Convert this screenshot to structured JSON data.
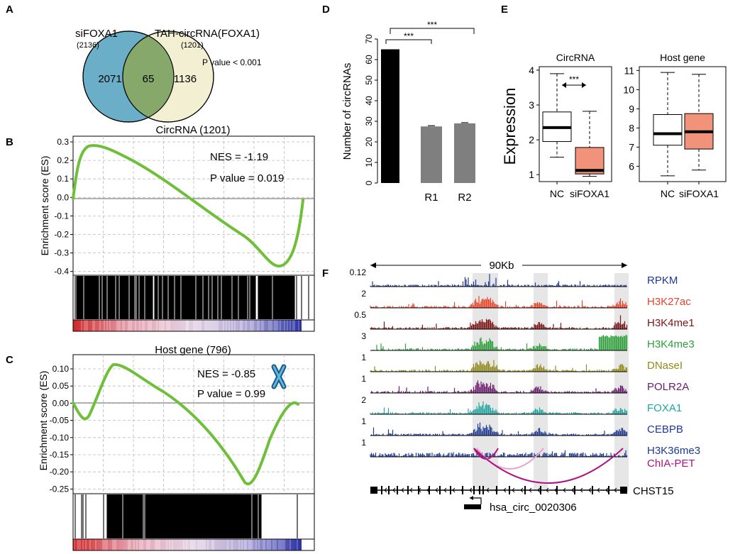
{
  "panels": {
    "a": "A",
    "b": "B",
    "c": "C",
    "d": "D",
    "e": "E",
    "f": "F"
  },
  "venn": {
    "left_label": "siFOXA1",
    "left_count": "(2136)",
    "right_label": "TAH-circRNA(FOXA1)",
    "right_count": "(1201)",
    "left_only": "2071",
    "overlap": "65",
    "right_only": "1136",
    "pvalue": "P value < 0.001",
    "colors": {
      "left": "#6aaec7",
      "right": "#f2efd2",
      "overlap": "#86a96b"
    }
  },
  "gsea_b": {
    "title": "CircRNA (1201)",
    "ylabel": "Enrichment score (ES)",
    "nes": "NES = -1.19",
    "pval": "P value = 0.019",
    "yticks": [
      "0.3",
      "0.2",
      "0.1",
      "0.0",
      "-0.1",
      "-0.2",
      "-0.3",
      "-0.4"
    ]
  },
  "gsea_c": {
    "title": "Host gene (796)",
    "ylabel": "Enrichment score (ES)",
    "nes": "NES = -0.85",
    "pval": "P value = 0.99",
    "yticks": [
      "0.10",
      "0.05",
      "0.00",
      "-0.05",
      "-0.10",
      "-0.15",
      "-0.20",
      "-0.25"
    ]
  },
  "chart_data": [
    {
      "type": "bar",
      "panel": "D",
      "categories": [
        "",
        "R1",
        "R2"
      ],
      "values": [
        65,
        27.5,
        29
      ],
      "ylabel": "Number of circRNAs",
      "ylim": [
        0,
        70
      ],
      "yticks": [
        "0",
        "10",
        "20",
        "30",
        "40",
        "50",
        "60",
        "70"
      ],
      "significance": [
        "***",
        "***"
      ],
      "colors": [
        "#000000",
        "#7f7f7f",
        "#7f7f7f"
      ]
    },
    {
      "type": "boxplot",
      "panel": "E-left",
      "title": "CircRNA",
      "ylabel": "Expression",
      "categories": [
        "NC",
        "siFOXA1"
      ],
      "boxes": [
        {
          "min": 1.5,
          "q1": 1.95,
          "median": 2.35,
          "q3": 2.8,
          "max": 3.9
        },
        {
          "min": 0.95,
          "q1": 1.02,
          "median": 1.12,
          "q3": 1.78,
          "max": 2.82
        }
      ],
      "ylim": [
        0.8,
        4.1
      ],
      "yticks": [
        "1",
        "2",
        "3",
        "4"
      ],
      "significance": "***"
    },
    {
      "type": "boxplot",
      "panel": "E-right",
      "title": "Host gene",
      "categories": [
        "NC",
        "siFOXA1"
      ],
      "boxes": [
        {
          "min": 5.5,
          "q1": 7.1,
          "median": 7.7,
          "q3": 8.7,
          "max": 10.9
        },
        {
          "min": 5.8,
          "q1": 6.9,
          "median": 7.8,
          "q3": 8.75,
          "max": 10.8
        }
      ],
      "ylim": [
        5.2,
        11.2
      ],
      "yticks": [
        "6",
        "7",
        "8",
        "9",
        "10",
        "11"
      ]
    }
  ],
  "tracks": {
    "scale": "90Kb",
    "items": [
      {
        "name": "RPKM",
        "max": "0.12",
        "color": "#1f3a93"
      },
      {
        "name": "H3K27ac",
        "max": "2",
        "color": "#e8442a"
      },
      {
        "name": "H3K4me1",
        "max": "0.5",
        "color": "#7a1515"
      },
      {
        "name": "H3K4me3",
        "max": "3",
        "color": "#2e9e3a"
      },
      {
        "name": "DNaseI",
        "max": "1",
        "color": "#8f8a1a"
      },
      {
        "name": "POLR2A",
        "max": "1",
        "color": "#6a1b6a"
      },
      {
        "name": "FOXA1",
        "max": "2",
        "color": "#1fa5a0"
      },
      {
        "name": "CEBPB",
        "max": "1",
        "color": "#1f3a93"
      },
      {
        "name": "H3K36me3",
        "max": "1",
        "color": "#1f3a93"
      }
    ],
    "chiapet": "ChIA-PET",
    "chiapet_color": "#b0127f",
    "gene": "CHST15",
    "circ": "hsa_circ_0020306"
  }
}
